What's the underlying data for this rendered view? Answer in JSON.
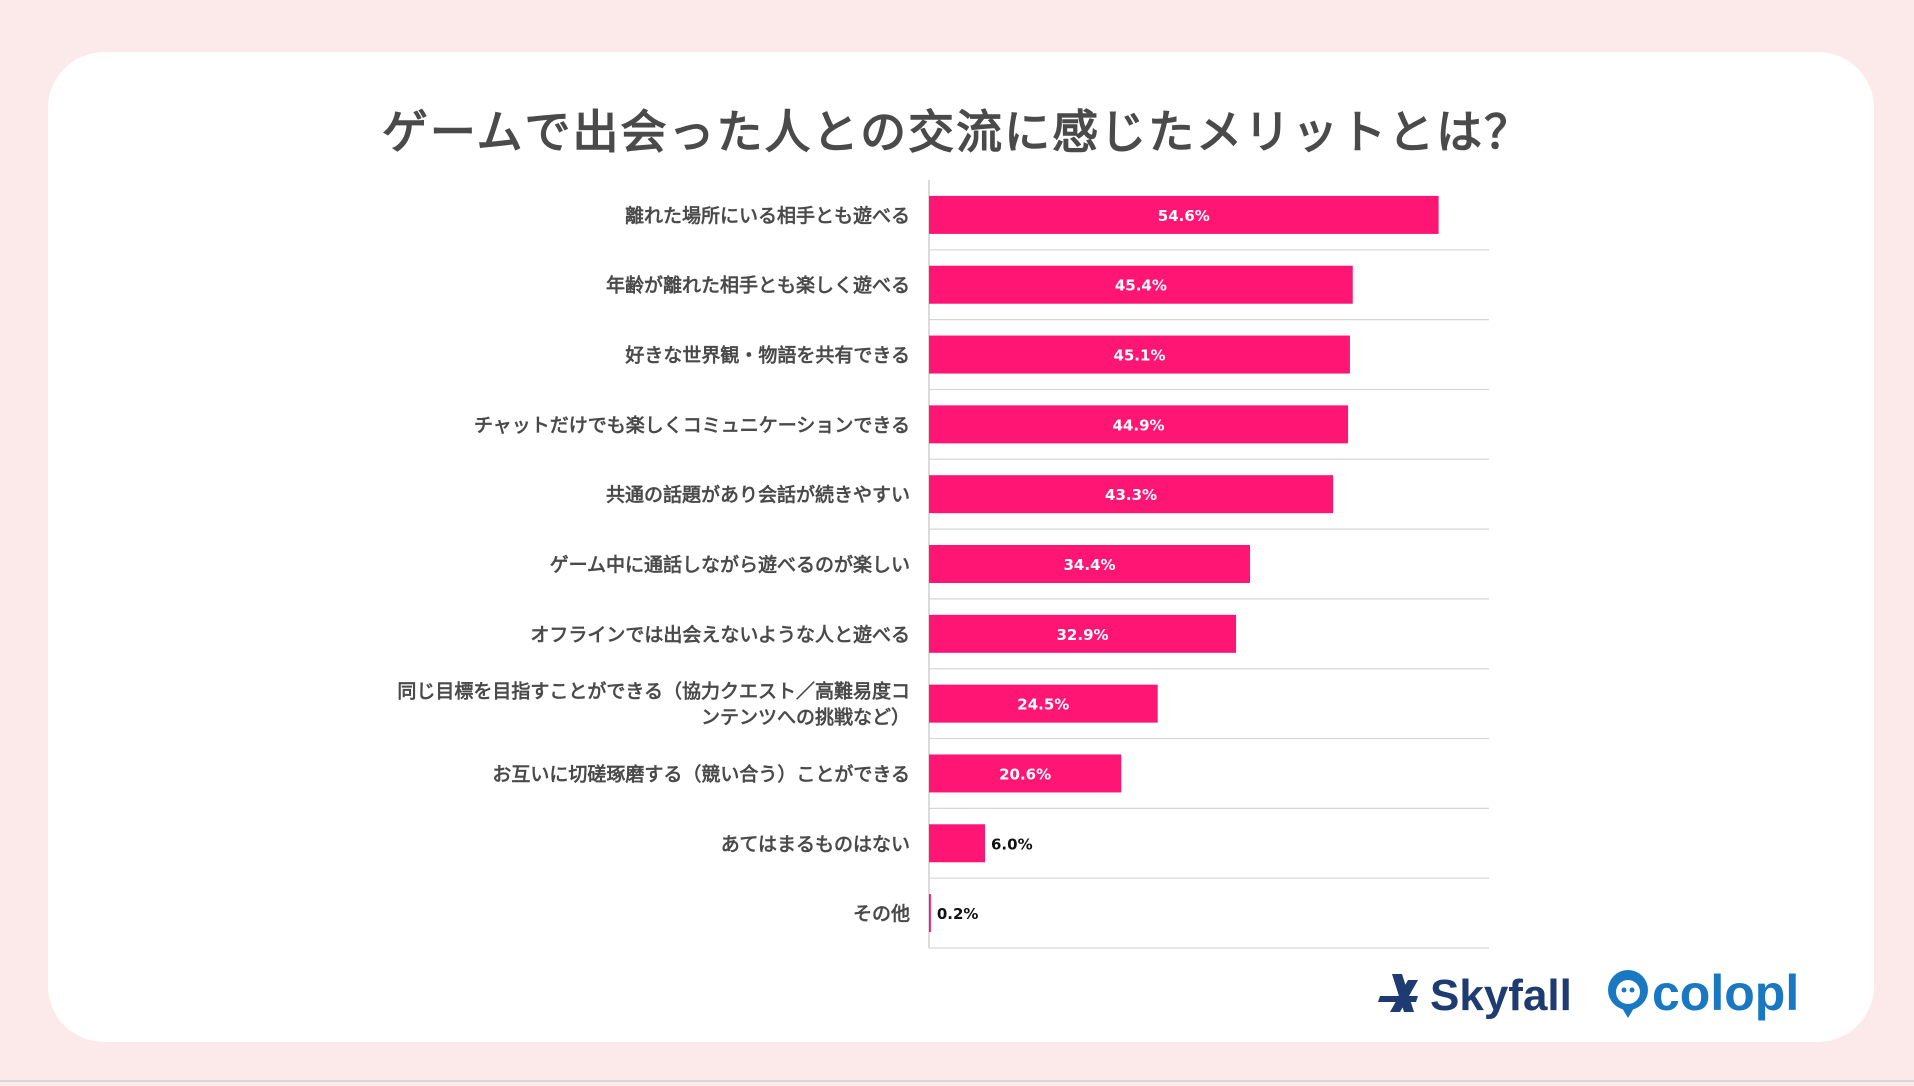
{
  "colors": {
    "background": "#fce9e9",
    "bar": "#ff1574",
    "text": "#4a4a4a",
    "brand_skyfall": "#1e3c72",
    "brand_colopl": "#1a78c2"
  },
  "chart_data": {
    "type": "bar",
    "orientation": "horizontal",
    "title": "ゲームで出会った人との交流に感じたメリットとは？",
    "categories": [
      "離れた場所にいる相手とも遊べる",
      "年齢が離れた相手とも楽しく遊べる",
      "好きな世界観・物語を共有できる",
      "チャットだけでも楽しくコミュニケーションできる",
      "共通の話題があり会話が続きやすい",
      "ゲーム中に通話しながら遊べるのが楽しい",
      "オフラインでは出会えないような人と遊べる",
      "同じ目標を目指すことができる（協力クエスト／高難易度コンテンツへの挑戦など）",
      "お互いに切磋琢磨する（競い合う）ことができる",
      "あてはまるものはない",
      "その他"
    ],
    "category_lines": [
      [
        "離れた場所にいる相手とも遊べる"
      ],
      [
        "年齢が離れた相手とも楽しく遊べる"
      ],
      [
        "好きな世界観・物語を共有できる"
      ],
      [
        "チャットだけでも楽しくコミュニケーションできる"
      ],
      [
        "共通の話題があり会話が続きやすい"
      ],
      [
        "ゲーム中に通話しながら遊べるのが楽しい"
      ],
      [
        "オフラインでは出会えないような人と遊べる"
      ],
      [
        "同じ目標を目指すことができる（協力クエスト／高難易度コ",
        "ンテンツへの挑戦など）"
      ],
      [
        "お互いに切磋琢磨する（競い合う）ことができる"
      ],
      [
        "あてはまるものはない"
      ],
      [
        "その他"
      ]
    ],
    "values": [
      54.6,
      45.4,
      45.1,
      44.9,
      43.3,
      34.4,
      32.9,
      24.5,
      20.6,
      6.0,
      0.2
    ],
    "value_labels": [
      "54.6%",
      "45.4%",
      "45.1%",
      "44.9%",
      "43.3%",
      "34.4%",
      "32.9%",
      "24.5%",
      "20.6%",
      "6.0%",
      "0.2%"
    ],
    "xlim": [
      0,
      60
    ],
    "grid": "horizontal row separators",
    "legend": "none"
  },
  "logos": {
    "skyfall": "Skyfall",
    "colopl": "colopl"
  }
}
